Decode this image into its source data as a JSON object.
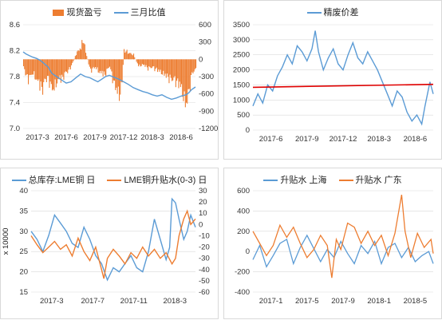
{
  "chart_data": [
    {
      "id": "p1",
      "type": "line+bar",
      "title": "",
      "legend": [
        "现货盈亏",
        "三月比值"
      ],
      "series": [
        {
          "name": "现货盈亏",
          "type": "bar",
          "axis": "right",
          "color": "#ED7D31"
        },
        {
          "name": "三月比值",
          "type": "line",
          "axis": "left",
          "color": "#5B9BD5"
        }
      ],
      "x_ticks": [
        "2017-3",
        "2017-6",
        "2017-9",
        "2017-12",
        "2018-3",
        "2018-6"
      ],
      "y_left": {
        "ticks": [
          "7.0",
          "7.4",
          "7.8",
          "8.2",
          "8.6"
        ],
        "range": [
          7.0,
          8.6
        ]
      },
      "y_right": {
        "ticks": [
          "-1200",
          "-900",
          "-600",
          "-300",
          "0",
          "300",
          "600"
        ],
        "range": [
          -1200,
          600
        ]
      },
      "line_points": [
        [
          0,
          8.18
        ],
        [
          3,
          8.15
        ],
        [
          7,
          8.12
        ],
        [
          10,
          8.1
        ],
        [
          14,
          8.08
        ],
        [
          18,
          8.05
        ],
        [
          22,
          8.0
        ],
        [
          26,
          7.95
        ],
        [
          30,
          7.85
        ],
        [
          35,
          7.8
        ],
        [
          40,
          7.75
        ],
        [
          45,
          7.7
        ],
        [
          50,
          7.72
        ],
        [
          55,
          7.78
        ],
        [
          60,
          7.84
        ],
        [
          65,
          7.8
        ],
        [
          70,
          7.78
        ],
        [
          74,
          7.75
        ],
        [
          78,
          7.72
        ],
        [
          82,
          7.76
        ],
        [
          86,
          7.8
        ],
        [
          90,
          7.82
        ],
        [
          95,
          7.79
        ],
        [
          100,
          7.76
        ],
        [
          105,
          7.72
        ],
        [
          110,
          7.68
        ],
        [
          115,
          7.63
        ],
        [
          120,
          7.6
        ],
        [
          125,
          7.57
        ],
        [
          130,
          7.55
        ],
        [
          135,
          7.52
        ],
        [
          140,
          7.5
        ],
        [
          145,
          7.52
        ],
        [
          150,
          7.48
        ],
        [
          155,
          7.45
        ],
        [
          160,
          7.47
        ],
        [
          165,
          7.5
        ],
        [
          170,
          7.52
        ],
        [
          173,
          7.55
        ],
        [
          176,
          7.6
        ],
        [
          180,
          7.64
        ]
      ],
      "bar_envelope": [
        [
          0,
          -200
        ],
        [
          5,
          -450
        ],
        [
          10,
          -300
        ],
        [
          15,
          -520
        ],
        [
          20,
          -650
        ],
        [
          25,
          -380
        ],
        [
          30,
          -700
        ],
        [
          35,
          -500
        ],
        [
          40,
          -420
        ],
        [
          45,
          -300
        ],
        [
          50,
          -150
        ],
        [
          55,
          120
        ],
        [
          60,
          280
        ],
        [
          62,
          450
        ],
        [
          65,
          180
        ],
        [
          68,
          -100
        ],
        [
          70,
          -250
        ],
        [
          75,
          -180
        ],
        [
          80,
          -300
        ],
        [
          85,
          -350
        ],
        [
          90,
          -150
        ],
        [
          95,
          -600
        ],
        [
          100,
          -800
        ],
        [
          103,
          -500
        ],
        [
          105,
          200
        ],
        [
          110,
          150
        ],
        [
          115,
          100
        ],
        [
          120,
          -150
        ],
        [
          125,
          -120
        ],
        [
          130,
          -200
        ],
        [
          135,
          -180
        ],
        [
          140,
          -250
        ],
        [
          145,
          -300
        ],
        [
          150,
          -400
        ],
        [
          155,
          -450
        ],
        [
          160,
          -500
        ],
        [
          165,
          -650
        ],
        [
          168,
          -900
        ],
        [
          170,
          -1050
        ],
        [
          173,
          -700
        ],
        [
          176,
          -300
        ],
        [
          180,
          -250
        ]
      ]
    },
    {
      "id": "p2",
      "type": "line",
      "title": "",
      "legend": [
        "精废价差"
      ],
      "series": [
        {
          "name": "精废价差",
          "color": "#5B9BD5"
        },
        {
          "name": "",
          "color": "#E00000",
          "type": "trend"
        }
      ],
      "x_ticks": [
        "2017-6",
        "2017-9",
        "2017-12",
        "2018-3",
        "2018-6"
      ],
      "y_left": {
        "ticks": [
          "0",
          "500",
          "1000",
          "1500",
          "2000",
          "2500",
          "3000",
          "3500"
        ],
        "range": [
          0,
          3500
        ]
      },
      "line_points": [
        [
          0,
          800
        ],
        [
          3,
          1200
        ],
        [
          6,
          900
        ],
        [
          9,
          1500
        ],
        [
          12,
          1300
        ],
        [
          15,
          1800
        ],
        [
          18,
          2100
        ],
        [
          21,
          2500
        ],
        [
          24,
          2200
        ],
        [
          27,
          2800
        ],
        [
          30,
          2600
        ],
        [
          33,
          2300
        ],
        [
          36,
          2700
        ],
        [
          38,
          3300
        ],
        [
          40,
          2600
        ],
        [
          43,
          2000
        ],
        [
          46,
          2400
        ],
        [
          49,
          2700
        ],
        [
          52,
          2200
        ],
        [
          55,
          2000
        ],
        [
          58,
          2500
        ],
        [
          61,
          2900
        ],
        [
          64,
          2400
        ],
        [
          67,
          2200
        ],
        [
          70,
          2600
        ],
        [
          73,
          2300
        ],
        [
          76,
          2000
        ],
        [
          79,
          1600
        ],
        [
          82,
          1200
        ],
        [
          85,
          800
        ],
        [
          88,
          1300
        ],
        [
          91,
          1100
        ],
        [
          94,
          600
        ],
        [
          97,
          300
        ],
        [
          100,
          500
        ],
        [
          103,
          200
        ],
        [
          105,
          800
        ],
        [
          108,
          1600
        ],
        [
          110,
          1200
        ]
      ],
      "trend_line": [
        [
          0,
          1420
        ],
        [
          110,
          1520
        ]
      ]
    },
    {
      "id": "p3",
      "type": "line",
      "title": "",
      "legend": [
        "总库存:LME铜 日",
        "LME铜升贴水(0-3) 日"
      ],
      "ylabel": "x 10000",
      "series": [
        {
          "name": "总库存:LME铜 日",
          "axis": "left",
          "color": "#5B9BD5"
        },
        {
          "name": "LME铜升贴水(0-3) 日",
          "axis": "right",
          "color": "#ED7D31"
        }
      ],
      "x_ticks": [
        "2017-3",
        "2017-7",
        "2017-11",
        "2018-3"
      ],
      "y_left": {
        "ticks": [
          "15",
          "20",
          "25",
          "30",
          "35",
          "40"
        ],
        "range": [
          15,
          40
        ]
      },
      "y_right": {
        "ticks": [
          "-60",
          "-50",
          "-40",
          "-30",
          "-20",
          "-10",
          "0",
          "10",
          "20",
          "30"
        ],
        "range": [
          -60,
          30
        ]
      },
      "line_points": [
        [
          0,
          30
        ],
        [
          5,
          28
        ],
        [
          10,
          25
        ],
        [
          15,
          29
        ],
        [
          20,
          34
        ],
        [
          25,
          32
        ],
        [
          30,
          30
        ],
        [
          35,
          27
        ],
        [
          40,
          26
        ],
        [
          45,
          31
        ],
        [
          50,
          28
        ],
        [
          55,
          24
        ],
        [
          60,
          22
        ],
        [
          65,
          18
        ],
        [
          70,
          21
        ],
        [
          75,
          20
        ],
        [
          80,
          22
        ],
        [
          85,
          24
        ],
        [
          90,
          21
        ],
        [
          95,
          20
        ],
        [
          100,
          25
        ],
        [
          105,
          33
        ],
        [
          110,
          28
        ],
        [
          115,
          23
        ],
        [
          118,
          26
        ],
        [
          120,
          38
        ],
        [
          123,
          37
        ],
        [
          126,
          33
        ],
        [
          130,
          28
        ],
        [
          133,
          30
        ],
        [
          136,
          34
        ],
        [
          140,
          31
        ]
      ],
      "line2_points": [
        [
          0,
          -10
        ],
        [
          5,
          -18
        ],
        [
          10,
          -25
        ],
        [
          15,
          -20
        ],
        [
          20,
          -15
        ],
        [
          25,
          -22
        ],
        [
          30,
          -18
        ],
        [
          35,
          -28
        ],
        [
          40,
          -12
        ],
        [
          45,
          -24
        ],
        [
          50,
          -32
        ],
        [
          55,
          -20
        ],
        [
          60,
          -40
        ],
        [
          62,
          -48
        ],
        [
          65,
          -30
        ],
        [
          70,
          -22
        ],
        [
          75,
          -28
        ],
        [
          80,
          -35
        ],
        [
          85,
          -25
        ],
        [
          90,
          -30
        ],
        [
          95,
          -20
        ],
        [
          100,
          -28
        ],
        [
          105,
          -22
        ],
        [
          110,
          -30
        ],
        [
          115,
          -25
        ],
        [
          120,
          -35
        ],
        [
          123,
          -30
        ],
        [
          126,
          -10
        ],
        [
          130,
          5
        ],
        [
          133,
          12
        ],
        [
          136,
          0
        ],
        [
          140,
          5
        ]
      ]
    },
    {
      "id": "p4",
      "type": "line",
      "title": "",
      "legend": [
        "升贴水 上海",
        "升贴水 广东"
      ],
      "series": [
        {
          "name": "升贴水 上海",
          "color": "#5B9BD5"
        },
        {
          "name": "升贴水 广东",
          "color": "#ED7D31"
        }
      ],
      "x_ticks": [
        "2017-1",
        "2017-5",
        "2017-9",
        "2018-1",
        "2018-5"
      ],
      "y_left": {
        "ticks": [
          "-400",
          "-200",
          "0",
          "200",
          "400",
          "600"
        ],
        "range": [
          -400,
          600
        ]
      },
      "line_points": [
        [
          0,
          -80
        ],
        [
          6,
          60
        ],
        [
          12,
          -150
        ],
        [
          18,
          -40
        ],
        [
          24,
          80
        ],
        [
          30,
          120
        ],
        [
          36,
          -120
        ],
        [
          42,
          40
        ],
        [
          48,
          160
        ],
        [
          54,
          30
        ],
        [
          60,
          -100
        ],
        [
          66,
          20
        ],
        [
          72,
          -60
        ],
        [
          78,
          100
        ],
        [
          84,
          -20
        ],
        [
          90,
          -120
        ],
        [
          96,
          60
        ],
        [
          102,
          -20
        ],
        [
          108,
          100
        ],
        [
          114,
          -120
        ],
        [
          120,
          40
        ],
        [
          126,
          80
        ],
        [
          132,
          -60
        ],
        [
          138,
          40
        ],
        [
          144,
          -100
        ],
        [
          150,
          -40
        ],
        [
          156,
          0
        ],
        [
          160,
          -120
        ]
      ],
      "line2_points": [
        [
          0,
          200
        ],
        [
          6,
          80
        ],
        [
          12,
          -40
        ],
        [
          18,
          60
        ],
        [
          24,
          260
        ],
        [
          30,
          140
        ],
        [
          36,
          240
        ],
        [
          42,
          80
        ],
        [
          48,
          -60
        ],
        [
          54,
          20
        ],
        [
          60,
          160
        ],
        [
          66,
          60
        ],
        [
          70,
          -260
        ],
        [
          74,
          120
        ],
        [
          78,
          20
        ],
        [
          84,
          280
        ],
        [
          90,
          240
        ],
        [
          96,
          80
        ],
        [
          102,
          200
        ],
        [
          108,
          60
        ],
        [
          114,
          160
        ],
        [
          120,
          -40
        ],
        [
          126,
          180
        ],
        [
          132,
          560
        ],
        [
          135,
          200
        ],
        [
          140,
          -60
        ],
        [
          146,
          180
        ],
        [
          152,
          40
        ],
        [
          158,
          120
        ],
        [
          160,
          -20
        ]
      ]
    }
  ]
}
